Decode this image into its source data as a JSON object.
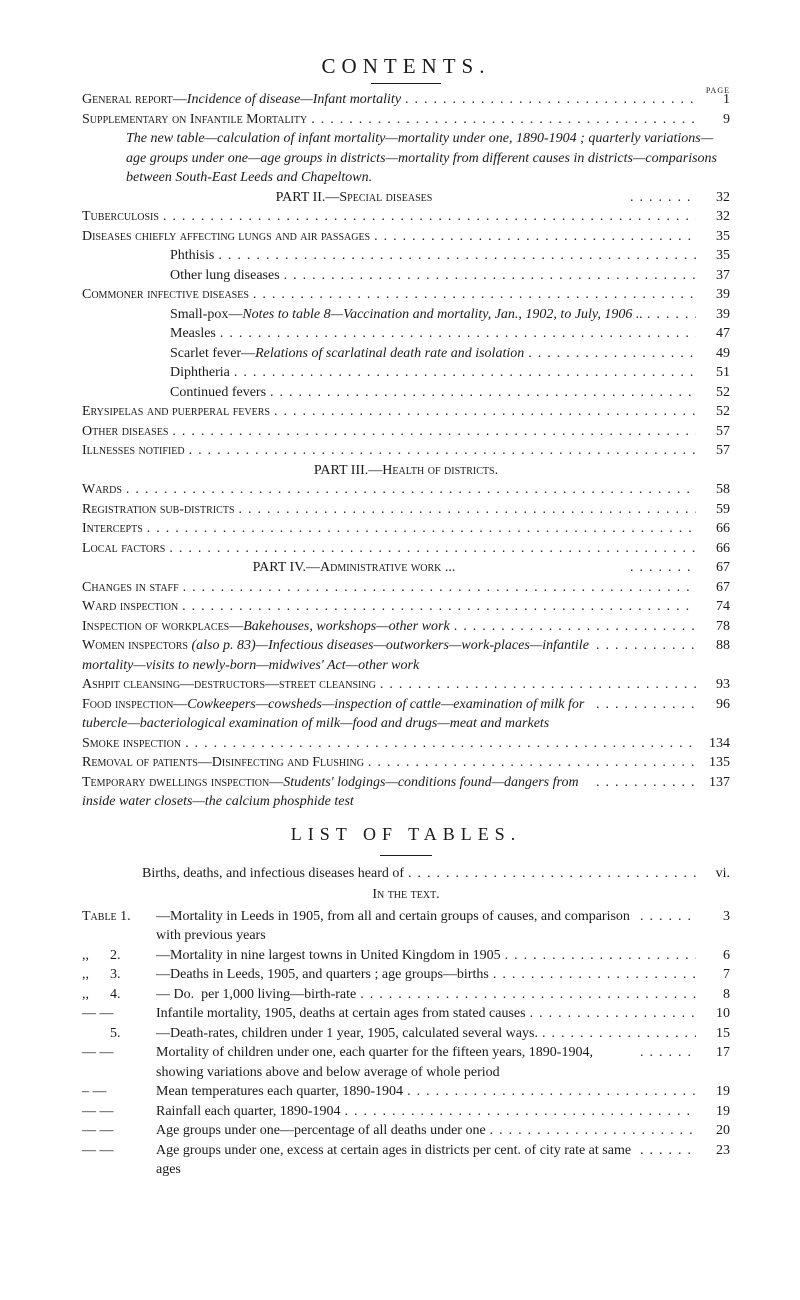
{
  "header": {
    "title": "CONTENTS.",
    "page_label": "page"
  },
  "items": [
    {
      "kind": "row",
      "cls": "",
      "label_sc": "General report—",
      "label_it": "Incidence of disease—Infant mortality",
      "page": "1"
    },
    {
      "kind": "row",
      "cls": "",
      "label_sc": "Supplementary on Infantile Mortality",
      "page": "9"
    },
    {
      "kind": "row",
      "cls": "ind1",
      "label_it": "The new table—calculation of infant mortality—mortality under one, 1890-1904 ; quarterly variations—age groups under one—age groups in districts—mortality from different causes in districts—comparisons between South-East Leeds and Chapeltown.",
      "noleader": true
    },
    {
      "kind": "part",
      "text": "PART II.—Special diseases",
      "page": "32"
    },
    {
      "kind": "row",
      "cls": "",
      "label_sc": "Tuberculosis",
      "page": "32"
    },
    {
      "kind": "row",
      "cls": "",
      "label_sc": "Diseases chiefly affecting lungs and air passages",
      "page": "35"
    },
    {
      "kind": "row",
      "cls": "ind2",
      "label": "Phthisis",
      "page": "35"
    },
    {
      "kind": "row",
      "cls": "ind2",
      "label": "Other lung diseases",
      "page": "37"
    },
    {
      "kind": "row",
      "cls": "",
      "label_sc": "Commoner infective diseases",
      "page": "39"
    },
    {
      "kind": "row",
      "cls": "ind2",
      "label": "Small-pox—",
      "label_it": "Notes to table 8—Vaccination and mortality, Jan., 1902, to July, 1906 ..",
      "page": "39"
    },
    {
      "kind": "row",
      "cls": "ind2",
      "label": "Measles",
      "page": "47"
    },
    {
      "kind": "row",
      "cls": "ind2",
      "label": "Scarlet fever—",
      "label_it": "Relations of scarlatinal death rate and isolation",
      "page": "49"
    },
    {
      "kind": "row",
      "cls": "ind2",
      "label": "Diphtheria",
      "page": "51"
    },
    {
      "kind": "row",
      "cls": "ind2",
      "label": "Continued fevers",
      "page": "52"
    },
    {
      "kind": "row",
      "cls": "",
      "label_sc": "Erysipelas and puerperal fevers",
      "page": "52"
    },
    {
      "kind": "row",
      "cls": "",
      "label_sc": "Other diseases",
      "page": "57"
    },
    {
      "kind": "row",
      "cls": "",
      "label_sc": "Illnesses notified",
      "page": "57"
    },
    {
      "kind": "part",
      "text": "PART III.—Health of districts."
    },
    {
      "kind": "row",
      "cls": "",
      "label_sc": "Wards",
      "page": "58"
    },
    {
      "kind": "row",
      "cls": "",
      "label_sc": "Registration sub-districts",
      "page": "59"
    },
    {
      "kind": "row",
      "cls": "",
      "label_sc": "Intercepts",
      "page": "66"
    },
    {
      "kind": "row",
      "cls": "",
      "label_sc": "Local factors",
      "page": "66"
    },
    {
      "kind": "part",
      "text": "PART IV.—Administrative work ...",
      "page": "67"
    },
    {
      "kind": "row",
      "cls": "",
      "label_sc": "Changes in staff",
      "page": "67"
    },
    {
      "kind": "row",
      "cls": "",
      "label_sc": "Ward inspection",
      "page": "74"
    },
    {
      "kind": "row",
      "cls": "",
      "label_sc": "Inspection of workplaces—",
      "label_it": "Bakehouses, workshops—other work",
      "page": "78"
    },
    {
      "kind": "row",
      "cls": "",
      "label_sc": "Women inspectors ",
      "label_it": "(also p. 83)—Infectious diseases—outworkers—work-places—infantile mortality—visits to newly-born—midwives' Act—other work",
      "page": "88"
    },
    {
      "kind": "row",
      "cls": "",
      "label_sc": "Ashpit cleansing—destructors—street cleansing",
      "page": "93"
    },
    {
      "kind": "row",
      "cls": "",
      "label_sc": "Food inspection—",
      "label_it": "Cowkeepers—cowsheds—inspection of cattle—examination of milk for tubercle—bacteriological examination of milk—food and drugs—meat and markets",
      "page": "96"
    },
    {
      "kind": "row",
      "cls": "",
      "label_sc": "Smoke inspection",
      "page": "134"
    },
    {
      "kind": "row",
      "cls": "",
      "label_sc": "Removal of patients—Disinfecting and Flushing",
      "page": "135"
    },
    {
      "kind": "row",
      "cls": "",
      "label_sc": "Temporary dwellings inspection—",
      "label_it": "Students' lodgings—conditions found—dangers from inside water closets—the calcium phosphide test",
      "page": "137"
    }
  ],
  "list": {
    "title": "LIST   OF   TABLES.",
    "center1": "Births, deaths, and infectious diseases heard of",
    "center1_pg": "vi.",
    "center2": "In the text.",
    "rows": [
      {
        "lbl": "Table 1.",
        "txt": "—Mortality in Leeds in 1905, from all and certain groups of causes, and comparison with previous years",
        "pg": "3"
      },
      {
        "lbl": ",,      2.",
        "txt": "—Mortality in nine largest towns in United Kingdom in 1905",
        "pg": "6"
      },
      {
        "lbl": ",,      3.",
        "txt": "—Deaths in Leeds, 1905, and quarters ; age groups—births",
        "pg": "7"
      },
      {
        "lbl": ",,      4.",
        "txt": "— Do.  per 1,000 living—birth-rate",
        "pg": "8"
      },
      {
        "lbl": "— —",
        "txt": "Infantile mortality, 1905, deaths at certain ages from stated causes",
        "pg": "10"
      },
      {
        "lbl": "        5.",
        "txt": "—Death-rates, children under 1 year, 1905, calculated several ways.",
        "pg": "15"
      },
      {
        "lbl": "— —",
        "txt": "Mortality of children under one, each quarter for the fifteen years, 1890-1904, showing variations above and below average of whole period",
        "pg": "17"
      },
      {
        "lbl": "– —",
        "txt": "Mean temperatures each quarter, 1890-1904",
        "pg": "19"
      },
      {
        "lbl": "— —",
        "txt": "Rainfall each quarter, 1890-1904",
        "pg": "19"
      },
      {
        "lbl": "— —",
        "txt": "Age groups under one—percentage of all deaths under one",
        "pg": "20"
      },
      {
        "lbl": "— —",
        "txt": "Age groups under one, excess at certain ages in districts per cent. of city rate at same ages",
        "pg": "23"
      }
    ]
  }
}
